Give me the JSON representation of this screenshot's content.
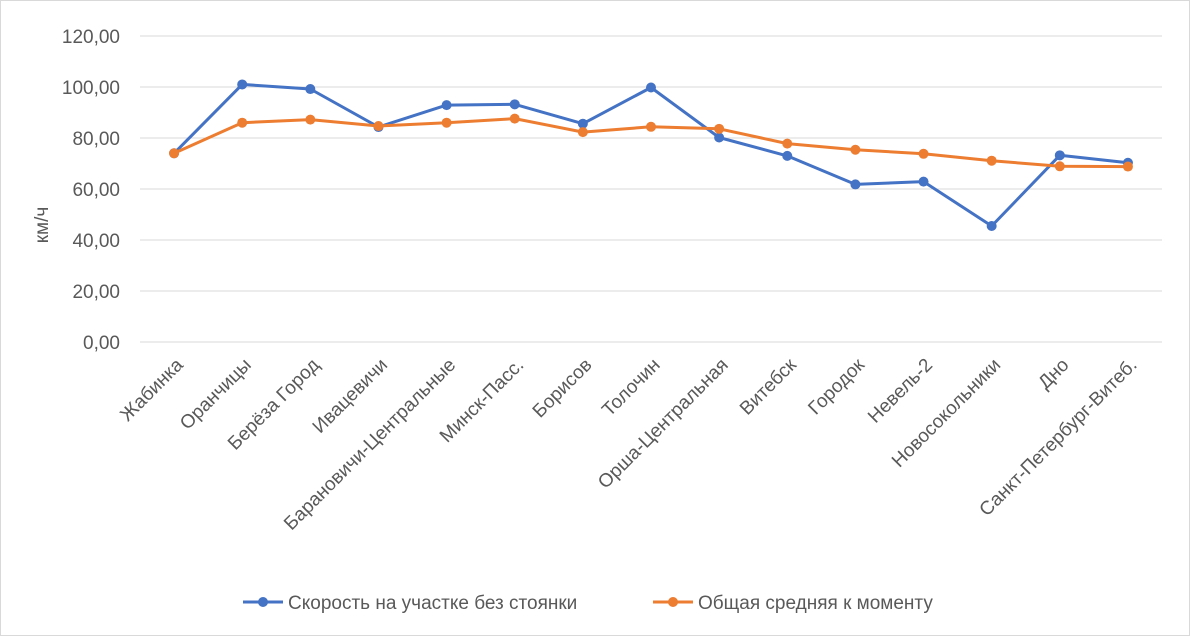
{
  "chart_data": {
    "type": "line",
    "title": "",
    "xlabel": "",
    "ylabel": "км/ч",
    "ylim": [
      0,
      120
    ],
    "ytick_step": 20,
    "ytick_labels": [
      "0,00",
      "20,00",
      "40,00",
      "60,00",
      "80,00",
      "100,00",
      "120,00"
    ],
    "grid": true,
    "legend_position": "bottom",
    "categories": [
      "Жабинка",
      "Оранчицы",
      "Берёза Город",
      "Ивацевичи",
      "Барановичи-Центральные",
      "Минск-Пасс.",
      "Борисов",
      "Толочин",
      "Орша-Центральная",
      "Витебск",
      "Городок",
      "Невель-2",
      "Новосокольники",
      "Дно",
      "Санкт-Петербург-Витеб."
    ],
    "series": [
      {
        "name": "Скорость на участке без стоянки",
        "color": "#4472c4",
        "values": [
          74.0,
          101.0,
          99.2,
          84.3,
          92.9,
          93.2,
          85.6,
          99.8,
          80.2,
          73.0,
          61.8,
          62.9,
          45.5,
          73.2,
          70.3
        ]
      },
      {
        "name": "Общая средняя к моменту",
        "color": "#ed7d31",
        "values": [
          74.0,
          86.0,
          87.2,
          84.7,
          86.0,
          87.6,
          82.3,
          84.4,
          83.6,
          77.8,
          75.4,
          73.8,
          71.1,
          68.9,
          68.8
        ]
      }
    ]
  }
}
